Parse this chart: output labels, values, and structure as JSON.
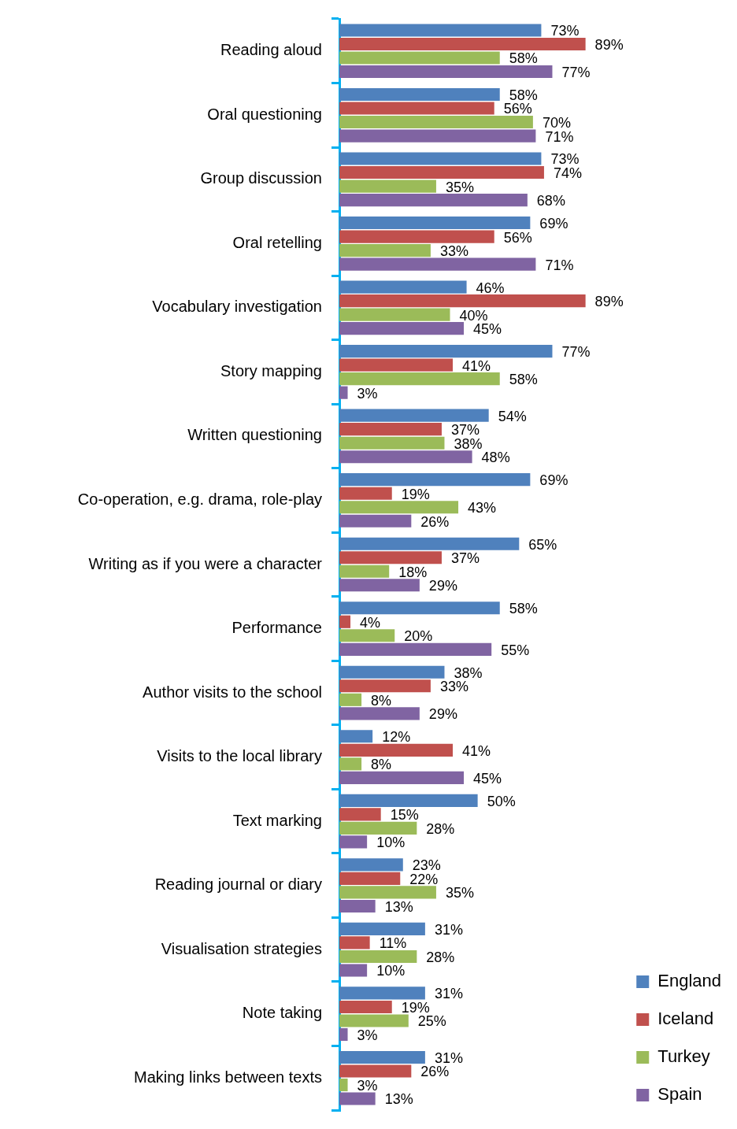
{
  "chart_data": {
    "type": "bar",
    "orientation": "horizontal",
    "legend": "bottom right",
    "data_labels": false,
    "categories": [
      "Reading aloud",
      "Oral questioning",
      "Group discussion",
      "Oral retelling",
      "Vocabulary investigation",
      "Story mapping",
      "Written questioning",
      "Co-operation, e.g. drama, role-play",
      "Writing as if you were a character",
      "Performance",
      "Author visits to the school",
      "Visits to the local library",
      "Text marking",
      "Reading journal or diary",
      "Visualisation strategies",
      "Note taking",
      "Making links between texts"
    ],
    "series": [
      {
        "name": "England",
        "color": "#4f81bd",
        "values": [
          73,
          58,
          73,
          69,
          46,
          77,
          54,
          69,
          65,
          58,
          38,
          12,
          50,
          23,
          31,
          31,
          31
        ],
        "value_labels": [
          "73%",
          "58%",
          "73%",
          "69%",
          "46%",
          "77%",
          "54%",
          "69%",
          "65%",
          "58%",
          "38%",
          "12%",
          "50%",
          "23%",
          "31%",
          "31%",
          "31%"
        ]
      },
      {
        "name": "Iceland",
        "color": "#c0504d",
        "values": [
          89,
          56,
          74,
          56,
          89,
          41,
          37,
          19,
          37,
          4,
          33,
          41,
          15,
          22,
          11,
          19,
          26
        ],
        "value_labels": [
          "89%",
          "56%",
          "74%",
          "56%",
          "89%",
          "41%",
          "37%",
          "19%",
          "37%",
          "4%",
          "33%",
          "41%",
          "15%",
          "22%",
          "11%",
          "19%",
          "26%"
        ]
      },
      {
        "name": "Turkey",
        "color": "#9bbb59",
        "values": [
          58,
          70,
          35,
          33,
          40,
          58,
          38,
          43,
          18,
          20,
          8,
          8,
          28,
          35,
          28,
          25,
          3
        ],
        "value_labels": [
          "58%",
          "70%",
          "35%",
          "33%",
          "40%",
          "58%",
          "38%",
          "43%",
          "18%",
          "20%",
          "8%",
          "8%",
          "28%",
          "35%",
          "28%",
          "25%",
          "3%"
        ]
      },
      {
        "name": "Spain",
        "color": "#8064a2",
        "values": [
          77,
          71,
          68,
          71,
          45,
          3,
          48,
          26,
          29,
          55,
          29,
          45,
          10,
          13,
          10,
          3,
          13
        ],
        "value_labels": [
          "77%",
          "71%",
          "68%",
          "71%",
          "45%",
          "3%",
          "48%",
          "26%",
          "29%",
          "55%",
          "29%",
          "45%",
          "10%",
          "13%",
          "10%",
          "3%",
          "13%"
        ]
      }
    ]
  }
}
